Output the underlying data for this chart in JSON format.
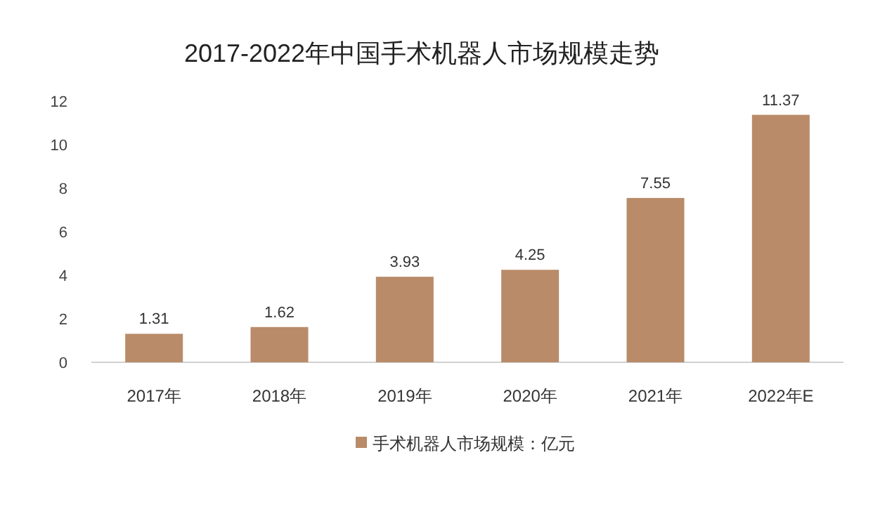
{
  "chart_data": {
    "type": "bar",
    "title": "2017-2022年中国手术机器人市场规模走势",
    "categories": [
      "2017年",
      "2018年",
      "2019年",
      "2020年",
      "2021年",
      "2022年E"
    ],
    "series": [
      {
        "name": "手术机器人市场规模：亿元",
        "color": "#b98b69",
        "values": [
          1.31,
          1.62,
          3.93,
          4.25,
          7.55,
          11.37
        ]
      }
    ],
    "ylim": [
      0,
      12
    ],
    "yticks": [
      0,
      2,
      4,
      6,
      8,
      10,
      12
    ],
    "data_labels": true,
    "legend": "bottom"
  }
}
